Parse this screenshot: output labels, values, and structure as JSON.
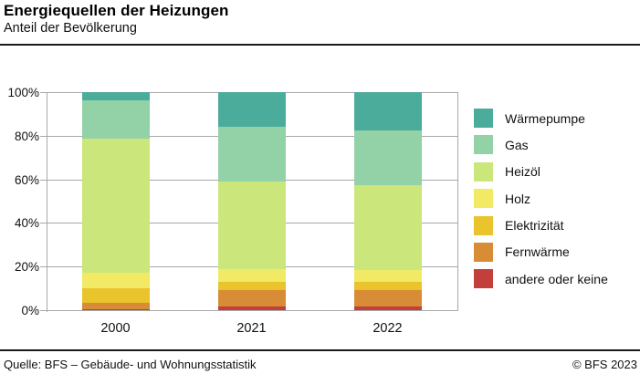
{
  "header": {
    "title": "Energiequellen der Heizungen",
    "subtitle": "Anteil der Bevölkerung"
  },
  "footer": {
    "source": "Quelle: BFS – Gebäude- und Wohnungsstatistik",
    "copyright": "© BFS 2023"
  },
  "chart_data": {
    "type": "bar",
    "stacked": true,
    "title": "Energiequellen der Heizungen",
    "subtitle": "Anteil der Bevölkerung",
    "unit": "percent",
    "categories": [
      "2000",
      "2021",
      "2022"
    ],
    "series": [
      {
        "key": "waermepumpe",
        "name": "Wärmepumpe",
        "color": "#4CAC9B",
        "values": [
          3.8,
          16.0,
          17.5
        ]
      },
      {
        "key": "gas",
        "name": "Gas",
        "color": "#93D1A7",
        "values": [
          17.7,
          25.0,
          25.0
        ]
      },
      {
        "key": "heizoel",
        "name": "Heizöl",
        "color": "#CBE67A",
        "values": [
          61.4,
          40.0,
          39.0
        ]
      },
      {
        "key": "holz",
        "name": "Holz",
        "color": "#F2E964",
        "values": [
          7.0,
          6.0,
          5.5
        ]
      },
      {
        "key": "elektrizitaet",
        "name": "Elektrizität",
        "color": "#E9C42D",
        "values": [
          6.6,
          4.0,
          3.6
        ]
      },
      {
        "key": "fernwaerme",
        "name": "Fernwärme",
        "color": "#D88C35",
        "values": [
          3.2,
          7.2,
          7.9
        ]
      },
      {
        "key": "andere",
        "name": "andere oder keine",
        "color": "#C23F3B",
        "values": [
          0.3,
          1.8,
          1.5
        ]
      }
    ],
    "ylim": [
      0,
      100
    ],
    "yticks": [
      "0%",
      "20%",
      "40%",
      "60%",
      "80%",
      "100%"
    ],
    "grid": true,
    "legend_position": "right",
    "gridline_color": "#a9a9a9"
  }
}
